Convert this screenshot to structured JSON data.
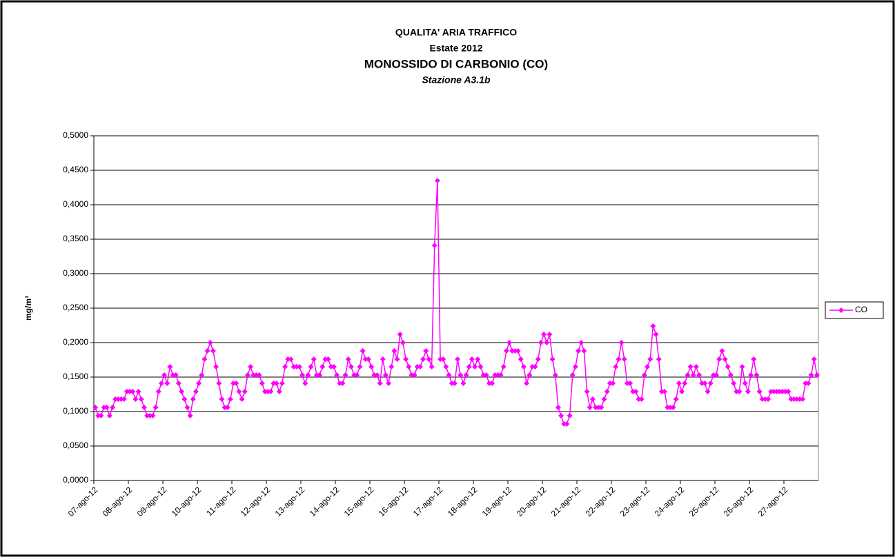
{
  "chart_data": {
    "type": "line",
    "title": "QUALITA' ARIA TRAFFICO",
    "subtitle": "Estate 2012",
    "heading": "MONOSSIDO DI CARBONIO (CO)",
    "station": "Stazione A3.1b",
    "y_label": "mg/m³",
    "legend": "right",
    "grid": true,
    "ylim": [
      0,
      0.5
    ],
    "yticks": [
      {
        "value": 0,
        "label": "0,0000"
      },
      {
        "value": 0.05,
        "label": "0,0500"
      },
      {
        "value": 0.1,
        "label": "0,1000"
      },
      {
        "value": 0.15,
        "label": "0,1500"
      },
      {
        "value": 0.2,
        "label": "0,2000"
      },
      {
        "value": 0.25,
        "label": "0,2500"
      },
      {
        "value": 0.3,
        "label": "0,3000"
      },
      {
        "value": 0.35,
        "label": "0,3500"
      },
      {
        "value": 0.4,
        "label": "0,4000"
      },
      {
        "value": 0.45,
        "label": "0,4500"
      },
      {
        "value": 0.5,
        "label": "0,5000"
      }
    ],
    "categories": [
      "07-ago-12",
      null,
      null,
      null,
      null,
      null,
      null,
      null,
      null,
      null,
      null,
      null,
      "08-ago-12",
      null,
      null,
      null,
      null,
      null,
      null,
      null,
      null,
      null,
      null,
      null,
      "09-ago-12",
      null,
      null,
      null,
      null,
      null,
      null,
      null,
      null,
      null,
      null,
      null,
      "10-ago-12",
      null,
      null,
      null,
      null,
      null,
      null,
      null,
      null,
      null,
      null,
      null,
      "11-ago-12",
      null,
      null,
      null,
      null,
      null,
      null,
      null,
      null,
      null,
      null,
      null,
      "12-ago-12",
      null,
      null,
      null,
      null,
      null,
      null,
      null,
      null,
      null,
      null,
      null,
      "13-ago-12",
      null,
      null,
      null,
      null,
      null,
      null,
      null,
      null,
      null,
      null,
      null,
      "14-ago-12",
      null,
      null,
      null,
      null,
      null,
      null,
      null,
      null,
      null,
      null,
      null,
      "15-ago-12",
      null,
      null,
      null,
      null,
      null,
      null,
      null,
      null,
      null,
      null,
      null,
      "16-ago-12",
      null,
      null,
      null,
      null,
      null,
      null,
      null,
      null,
      null,
      null,
      null,
      "17-ago-12",
      null,
      null,
      null,
      null,
      null,
      null,
      null,
      null,
      null,
      null,
      null,
      "18-ago-12",
      null,
      null,
      null,
      null,
      null,
      null,
      null,
      null,
      null,
      null,
      null,
      "19-ago-12",
      null,
      null,
      null,
      null,
      null,
      null,
      null,
      null,
      null,
      null,
      null,
      "20-ago-12",
      null,
      null,
      null,
      null,
      null,
      null,
      null,
      null,
      null,
      null,
      null,
      "21-ago-12",
      null,
      null,
      null,
      null,
      null,
      null,
      null,
      null,
      null,
      null,
      null,
      "22-ago-12",
      null,
      null,
      null,
      null,
      null,
      null,
      null,
      null,
      null,
      null,
      null,
      "23-ago-12",
      null,
      null,
      null,
      null,
      null,
      null,
      null,
      null,
      null,
      null,
      null,
      "24-ago-12",
      null,
      null,
      null,
      null,
      null,
      null,
      null,
      null,
      null,
      null,
      null,
      "25-ago-12",
      null,
      null,
      null,
      null,
      null,
      null,
      null,
      null,
      null,
      null,
      null,
      "26-ago-12",
      null,
      null,
      null,
      null,
      null,
      null,
      null,
      null,
      null,
      null,
      null,
      "27-ago-12",
      null,
      null,
      null,
      null,
      null,
      null,
      null,
      null,
      null,
      null,
      null
    ],
    "series": [
      {
        "name": "CO",
        "color": "#ff00ff",
        "values": [
          0.106,
          0.094,
          0.094,
          0.106,
          0.106,
          0.094,
          0.106,
          0.118,
          0.118,
          0.118,
          0.118,
          0.129,
          0.129,
          0.129,
          0.118,
          0.129,
          0.118,
          0.106,
          0.094,
          0.094,
          0.094,
          0.106,
          0.129,
          0.141,
          0.153,
          0.141,
          0.165,
          0.153,
          0.153,
          0.141,
          0.129,
          0.118,
          0.106,
          0.094,
          0.118,
          0.129,
          0.141,
          0.153,
          0.176,
          0.188,
          0.2,
          0.188,
          0.165,
          0.141,
          0.118,
          0.106,
          0.106,
          0.118,
          0.141,
          0.141,
          0.129,
          0.118,
          0.129,
          0.153,
          0.165,
          0.153,
          0.153,
          0.153,
          0.141,
          0.129,
          0.129,
          0.129,
          0.141,
          0.141,
          0.129,
          0.141,
          0.165,
          0.176,
          0.176,
          0.165,
          0.165,
          0.165,
          0.153,
          0.141,
          0.153,
          0.165,
          0.176,
          0.153,
          0.153,
          0.165,
          0.176,
          0.176,
          0.165,
          0.165,
          0.153,
          0.141,
          0.141,
          0.153,
          0.176,
          0.165,
          0.153,
          0.153,
          0.165,
          0.188,
          0.176,
          0.176,
          0.165,
          0.153,
          0.153,
          0.141,
          0.176,
          0.153,
          0.141,
          0.165,
          0.188,
          0.176,
          0.212,
          0.2,
          0.176,
          0.165,
          0.153,
          0.153,
          0.165,
          0.165,
          0.176,
          0.188,
          0.176,
          0.165,
          0.341,
          0.435,
          0.176,
          0.176,
          0.165,
          0.153,
          0.141,
          0.141,
          0.176,
          0.153,
          0.141,
          0.153,
          0.165,
          0.176,
          0.165,
          0.176,
          0.165,
          0.153,
          0.153,
          0.141,
          0.141,
          0.153,
          0.153,
          0.153,
          0.165,
          0.188,
          0.2,
          0.188,
          0.188,
          0.188,
          0.176,
          0.165,
          0.141,
          0.153,
          0.165,
          0.165,
          0.176,
          0.2,
          0.212,
          0.2,
          0.212,
          0.176,
          0.153,
          0.106,
          0.094,
          0.082,
          0.082,
          0.094,
          0.153,
          0.165,
          0.188,
          0.2,
          0.188,
          0.129,
          0.106,
          0.118,
          0.106,
          0.106,
          0.106,
          0.118,
          0.129,
          0.141,
          0.141,
          0.165,
          0.176,
          0.2,
          0.176,
          0.141,
          0.141,
          0.129,
          0.129,
          0.118,
          0.118,
          0.153,
          0.165,
          0.176,
          0.224,
          0.212,
          0.176,
          0.129,
          0.129,
          0.106,
          0.106,
          0.106,
          0.118,
          0.141,
          0.129,
          0.141,
          0.153,
          0.165,
          0.153,
          0.165,
          0.153,
          0.141,
          0.141,
          0.129,
          0.141,
          0.153,
          0.153,
          0.176,
          0.188,
          0.176,
          0.165,
          0.153,
          0.141,
          0.129,
          0.129,
          0.165,
          0.141,
          0.129,
          0.153,
          0.176,
          0.153,
          0.129,
          0.118,
          0.118,
          0.118,
          0.129,
          0.129,
          0.129,
          0.129,
          0.129,
          0.129,
          0.129,
          0.118,
          0.118,
          0.118,
          0.118,
          0.118,
          0.141,
          0.141,
          0.153,
          0.176,
          0.153
        ]
      }
    ]
  }
}
